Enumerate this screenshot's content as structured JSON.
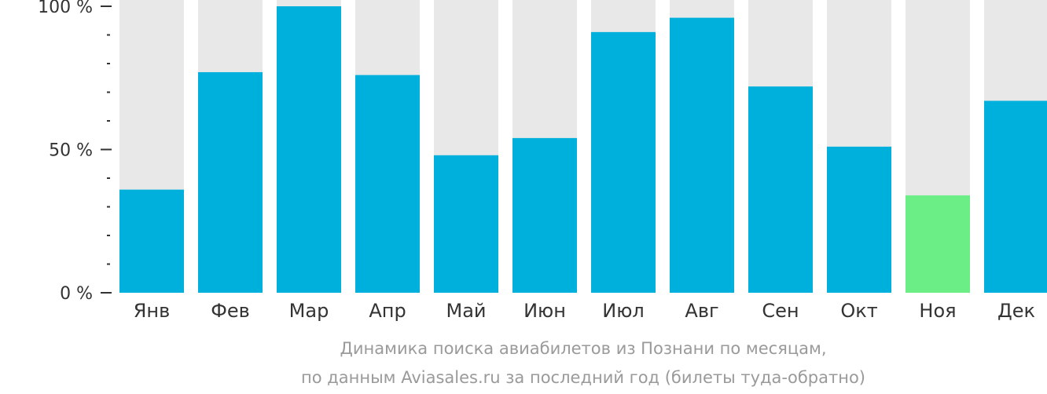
{
  "chart_data": {
    "type": "bar",
    "categories": [
      "Янв",
      "Фев",
      "Мар",
      "Апр",
      "Май",
      "Июн",
      "Июл",
      "Авг",
      "Сен",
      "Окт",
      "Ноя",
      "Дек"
    ],
    "values": [
      36,
      77,
      100,
      76,
      48,
      54,
      91,
      96,
      72,
      51,
      34,
      67
    ],
    "ylim": [
      0,
      100
    ],
    "y_ticks": [
      {
        "value": 100,
        "label": "100 %"
      },
      {
        "value": 50,
        "label": "50 %"
      },
      {
        "value": 0,
        "label": "0 %"
      }
    ],
    "y_minor_ticks": [
      90,
      80,
      70,
      60,
      40,
      30,
      20,
      10
    ],
    "highlight_index": 10,
    "caption_line1": "Динамика поиска авиабилетов из Познани по месяцам,",
    "caption_line2": "по данным Aviasales.ru за последний год (билеты туда-обратно)",
    "colors": {
      "bar": "#00b0dc",
      "highlight": "#6bee86",
      "background_bar": "#e8e8e8",
      "axis": "#333333",
      "caption": "#9a9a9a"
    }
  }
}
